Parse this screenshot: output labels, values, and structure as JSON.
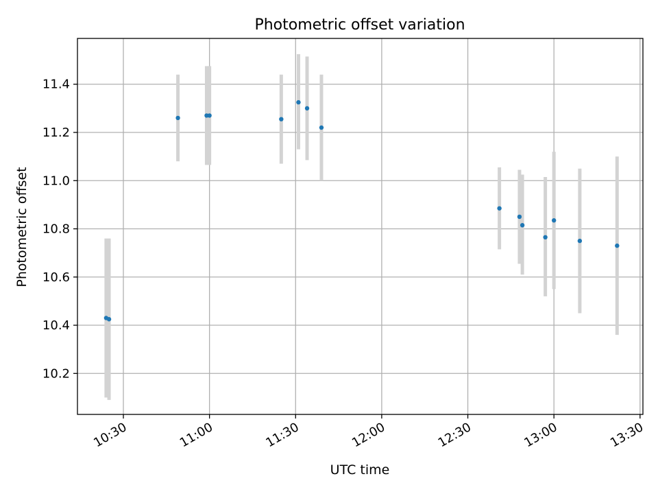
{
  "chart_data": {
    "type": "scatter",
    "title": "Photometric offset variation",
    "xlabel": "UTC time",
    "ylabel": "Photometric offset",
    "x_tick_labels": [
      "10:30",
      "11:00",
      "11:30",
      "12:00",
      "12:30",
      "13:00",
      "13:30"
    ],
    "x_ticks": [
      "10:30",
      "11:00",
      "11:30",
      "12:00",
      "12:30",
      "13:00",
      "13:30"
    ],
    "xlim": [
      "10:14",
      "13:31"
    ],
    "y_ticks": [
      10.2,
      10.4,
      10.6,
      10.8,
      11.0,
      11.2,
      11.4
    ],
    "y_tick_labels": [
      "10.2",
      "10.4",
      "10.6",
      "10.8",
      "11.0",
      "11.2",
      "11.4"
    ],
    "ylim": [
      10.03,
      11.59
    ],
    "grid": true,
    "marker_color": "#1f77b4",
    "errorbar_color": "#d3d3d3",
    "points": [
      {
        "time": "10:24",
        "value": 10.43,
        "low": 10.1,
        "high": 10.76
      },
      {
        "time": "10:25",
        "value": 10.425,
        "low": 10.09,
        "high": 10.76
      },
      {
        "time": "10:49",
        "value": 11.26,
        "low": 11.08,
        "high": 11.44
      },
      {
        "time": "10:59",
        "value": 11.27,
        "low": 11.065,
        "high": 11.475
      },
      {
        "time": "11:00",
        "value": 11.27,
        "low": 11.065,
        "high": 11.475
      },
      {
        "time": "11:25",
        "value": 11.255,
        "low": 11.07,
        "high": 11.44
      },
      {
        "time": "11:31",
        "value": 11.325,
        "low": 11.13,
        "high": 11.525
      },
      {
        "time": "11:34",
        "value": 11.3,
        "low": 11.085,
        "high": 11.515
      },
      {
        "time": "11:39",
        "value": 11.22,
        "low": 11.0,
        "high": 11.44
      },
      {
        "time": "12:41",
        "value": 10.885,
        "low": 10.715,
        "high": 11.055
      },
      {
        "time": "12:48",
        "value": 10.85,
        "low": 10.655,
        "high": 11.045
      },
      {
        "time": "12:49",
        "value": 10.815,
        "low": 10.61,
        "high": 11.025
      },
      {
        "time": "12:57",
        "value": 10.765,
        "low": 10.52,
        "high": 11.015
      },
      {
        "time": "13:00",
        "value": 10.835,
        "low": 10.55,
        "high": 11.12
      },
      {
        "time": "13:09",
        "value": 10.75,
        "low": 10.45,
        "high": 11.05
      },
      {
        "time": "13:22",
        "value": 10.73,
        "low": 10.36,
        "high": 11.1
      }
    ]
  }
}
